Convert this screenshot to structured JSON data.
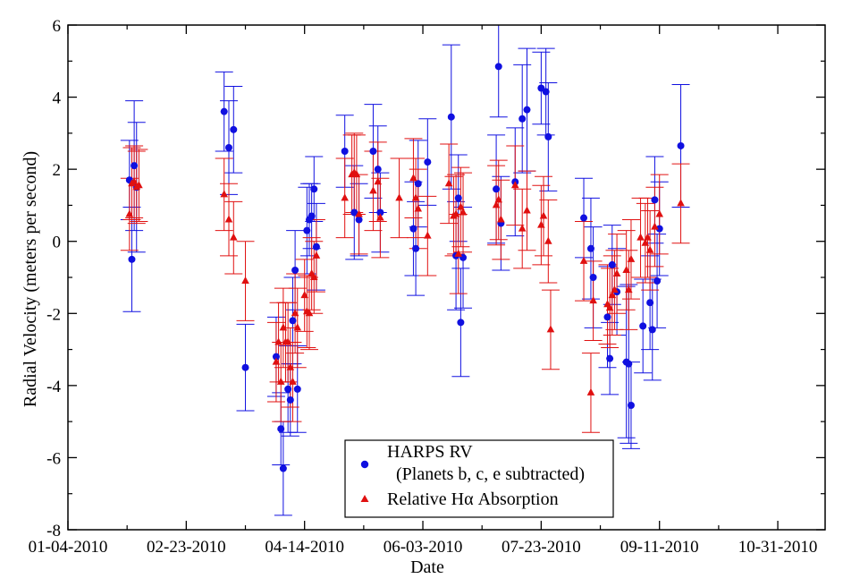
{
  "chart_data": {
    "type": "scatter",
    "title": "",
    "xlabel": "Date",
    "ylabel": "Radial Velocity (meters per second)",
    "x_tick_labels": [
      "01-04-2010",
      "02-23-2010",
      "04-14-2010",
      "06-03-2010",
      "07-23-2010",
      "09-11-2010",
      "10-31-2010"
    ],
    "x_tick_dates": [
      "2010-01-04",
      "2010-02-23",
      "2010-04-14",
      "2010-06-03",
      "2010-07-23",
      "2010-09-11",
      "2010-10-31"
    ],
    "xlim": [
      "2010-01-04",
      "2010-11-20"
    ],
    "y_ticks": [
      -8,
      -6,
      -4,
      -2,
      0,
      2,
      4,
      6
    ],
    "ylim": [
      -8,
      6
    ],
    "grid": false,
    "legend_position": "bottom-center",
    "legend": [
      {
        "label_lines": [
          "HARPS RV",
          "(Planets b, c, e subtracted)"
        ],
        "marker": "circle",
        "color": "#1010e0"
      },
      {
        "label_lines": [
          "Relative Hα Absorption"
        ],
        "marker": "triangle",
        "color": "#e01010"
      }
    ],
    "series": [
      {
        "name": "HARPS RV (Planets b, c, e subtracted)",
        "marker": "circle",
        "color": "#1010e0",
        "points": [
          {
            "x": "2010-01-30",
            "y": 1.7,
            "err": 1.1
          },
          {
            "x": "2010-01-31",
            "y": -0.5,
            "err": 1.45
          },
          {
            "x": "2010-02-01",
            "y": 2.1,
            "err": 1.8
          },
          {
            "x": "2010-02-02",
            "y": 1.5,
            "err": 1.8
          },
          {
            "x": "2010-03-11",
            "y": 3.6,
            "err": 1.1
          },
          {
            "x": "2010-03-13",
            "y": 2.6,
            "err": 1.3
          },
          {
            "x": "2010-03-15",
            "y": 3.1,
            "err": 1.2
          },
          {
            "x": "2010-03-20",
            "y": -3.5,
            "err": 1.2
          },
          {
            "x": "2010-04-02",
            "y": -3.2,
            "err": 1.1
          },
          {
            "x": "2010-04-04",
            "y": -5.2,
            "err": 1.0
          },
          {
            "x": "2010-04-05",
            "y": -6.3,
            "err": 1.3
          },
          {
            "x": "2010-04-07",
            "y": -4.1,
            "err": 1.2
          },
          {
            "x": "2010-04-08",
            "y": -4.4,
            "err": 1.0
          },
          {
            "x": "2010-04-09",
            "y": -2.2,
            "err": 1.2
          },
          {
            "x": "2010-04-10",
            "y": -0.8,
            "err": 1.1
          },
          {
            "x": "2010-04-11",
            "y": -4.1,
            "err": 1.2
          },
          {
            "x": "2010-04-15",
            "y": 0.3,
            "err": 1.2
          },
          {
            "x": "2010-04-16",
            "y": 0.6,
            "err": 1.0
          },
          {
            "x": "2010-04-17",
            "y": 0.7,
            "err": 0.9
          },
          {
            "x": "2010-04-18",
            "y": 1.45,
            "err": 0.9
          },
          {
            "x": "2010-04-19",
            "y": -0.15,
            "err": 1.2
          },
          {
            "x": "2010-05-01",
            "y": 2.5,
            "err": 1.0
          },
          {
            "x": "2010-05-05",
            "y": 0.8,
            "err": 1.3
          },
          {
            "x": "2010-05-07",
            "y": 0.6,
            "err": 1.0
          },
          {
            "x": "2010-05-13",
            "y": 2.5,
            "err": 1.3
          },
          {
            "x": "2010-05-15",
            "y": 2.0,
            "err": 1.2
          },
          {
            "x": "2010-05-16",
            "y": 0.8,
            "err": 1.1
          },
          {
            "x": "2010-05-30",
            "y": 0.35,
            "err": 1.3
          },
          {
            "x": "2010-05-31",
            "y": -0.2,
            "err": 1.3
          },
          {
            "x": "2010-06-01",
            "y": 1.6,
            "err": 1.2
          },
          {
            "x": "2010-06-05",
            "y": 2.2,
            "err": 1.2
          },
          {
            "x": "2010-06-15",
            "y": 3.45,
            "err": 2.0
          },
          {
            "x": "2010-06-17",
            "y": -0.4,
            "err": 1.5
          },
          {
            "x": "2010-06-18",
            "y": 1.2,
            "err": 1.2
          },
          {
            "x": "2010-06-19",
            "y": -2.25,
            "err": 1.5
          },
          {
            "x": "2010-06-20",
            "y": -0.45,
            "err": 1.4
          },
          {
            "x": "2010-07-04",
            "y": 1.45,
            "err": 1.5
          },
          {
            "x": "2010-07-05",
            "y": 4.85,
            "err": 1.4
          },
          {
            "x": "2010-07-06",
            "y": 0.5,
            "err": 1.3
          },
          {
            "x": "2010-07-12",
            "y": 1.65,
            "err": 1.5
          },
          {
            "x": "2010-07-15",
            "y": 3.4,
            "err": 1.5
          },
          {
            "x": "2010-07-17",
            "y": 3.65,
            "err": 1.7
          },
          {
            "x": "2010-07-23",
            "y": 4.25,
            "err": 1.0
          },
          {
            "x": "2010-07-25",
            "y": 4.15,
            "err": 1.2
          },
          {
            "x": "2010-07-26",
            "y": 2.9,
            "err": 1.5
          },
          {
            "x": "2010-08-10",
            "y": 0.65,
            "err": 1.1
          },
          {
            "x": "2010-08-13",
            "y": -0.2,
            "err": 1.4
          },
          {
            "x": "2010-08-14",
            "y": -1.0,
            "err": 1.4
          },
          {
            "x": "2010-08-20",
            "y": -2.1,
            "err": 1.4
          },
          {
            "x": "2010-08-21",
            "y": -3.25,
            "err": 1.0
          },
          {
            "x": "2010-08-22",
            "y": -0.65,
            "err": 1.1
          },
          {
            "x": "2010-08-24",
            "y": -1.4,
            "err": 1.2
          },
          {
            "x": "2010-08-28",
            "y": -3.35,
            "err": 2.1
          },
          {
            "x": "2010-08-29",
            "y": -3.4,
            "err": 2.2
          },
          {
            "x": "2010-08-30",
            "y": -4.55,
            "err": 1.2
          },
          {
            "x": "2010-09-04",
            "y": -2.35,
            "err": 1.3
          },
          {
            "x": "2010-09-07",
            "y": -1.7,
            "err": 1.3
          },
          {
            "x": "2010-09-08",
            "y": -2.45,
            "err": 1.4
          },
          {
            "x": "2010-09-09",
            "y": 1.15,
            "err": 1.2
          },
          {
            "x": "2010-09-10",
            "y": -1.1,
            "err": 1.3
          },
          {
            "x": "2010-09-11",
            "y": 0.35,
            "err": 1.3
          },
          {
            "x": "2010-09-20",
            "y": 2.65,
            "err": 1.7
          }
        ]
      },
      {
        "name": "Relative Hα Absorption",
        "marker": "triangle",
        "color": "#e01010",
        "points": [
          {
            "x": "2010-01-30",
            "y": 0.75,
            "err": 1.0
          },
          {
            "x": "2010-01-31",
            "y": 1.6,
            "err": 1.0
          },
          {
            "x": "2010-02-01",
            "y": 1.65,
            "err": 1.0
          },
          {
            "x": "2010-02-02",
            "y": 1.5,
            "err": 1.0
          },
          {
            "x": "2010-02-03",
            "y": 1.55,
            "err": 1.0
          },
          {
            "x": "2010-03-11",
            "y": 1.3,
            "err": 1.0
          },
          {
            "x": "2010-03-13",
            "y": 0.6,
            "err": 1.0
          },
          {
            "x": "2010-03-15",
            "y": 0.1,
            "err": 1.0
          },
          {
            "x": "2010-03-20",
            "y": -1.1,
            "err": 1.1
          },
          {
            "x": "2010-04-02",
            "y": -3.35,
            "err": 1.1
          },
          {
            "x": "2010-04-03",
            "y": -2.8,
            "err": 1.1
          },
          {
            "x": "2010-04-04",
            "y": -3.9,
            "err": 1.1
          },
          {
            "x": "2010-04-05",
            "y": -2.4,
            "err": 1.1
          },
          {
            "x": "2010-04-06",
            "y": -2.8,
            "err": 1.1
          },
          {
            "x": "2010-04-07",
            "y": -2.8,
            "err": 1.1
          },
          {
            "x": "2010-04-08",
            "y": -3.5,
            "err": 1.1
          },
          {
            "x": "2010-04-09",
            "y": -3.9,
            "err": 1.1
          },
          {
            "x": "2010-04-10",
            "y": -2.0,
            "err": 1.1
          },
          {
            "x": "2010-04-11",
            "y": -2.4,
            "err": 1.1
          },
          {
            "x": "2010-04-14",
            "y": -1.5,
            "err": 1.0
          },
          {
            "x": "2010-04-15",
            "y": -1.95,
            "err": 1.0
          },
          {
            "x": "2010-04-16",
            "y": -2.0,
            "err": 1.0
          },
          {
            "x": "2010-04-17",
            "y": -0.9,
            "err": 1.0
          },
          {
            "x": "2010-04-18",
            "y": -1.0,
            "err": 1.0
          },
          {
            "x": "2010-04-19",
            "y": -0.4,
            "err": 1.0
          },
          {
            "x": "2010-05-01",
            "y": 1.2,
            "err": 1.1
          },
          {
            "x": "2010-05-04",
            "y": 1.85,
            "err": 1.1
          },
          {
            "x": "2010-05-05",
            "y": 1.9,
            "err": 1.1
          },
          {
            "x": "2010-05-06",
            "y": 1.85,
            "err": 1.1
          },
          {
            "x": "2010-05-07",
            "y": 0.75,
            "err": 1.1
          },
          {
            "x": "2010-05-13",
            "y": 1.4,
            "err": 1.1
          },
          {
            "x": "2010-05-15",
            "y": 1.65,
            "err": 1.1
          },
          {
            "x": "2010-05-16",
            "y": 0.65,
            "err": 1.1
          },
          {
            "x": "2010-05-24",
            "y": 1.2,
            "err": 1.1
          },
          {
            "x": "2010-05-30",
            "y": 1.75,
            "err": 1.1
          },
          {
            "x": "2010-05-31",
            "y": 1.2,
            "err": 1.1
          },
          {
            "x": "2010-06-01",
            "y": 0.9,
            "err": 1.1
          },
          {
            "x": "2010-06-05",
            "y": 0.15,
            "err": 1.1
          },
          {
            "x": "2010-06-14",
            "y": 1.6,
            "err": 1.1
          },
          {
            "x": "2010-06-16",
            "y": 0.7,
            "err": 1.1
          },
          {
            "x": "2010-06-17",
            "y": 0.75,
            "err": 1.1
          },
          {
            "x": "2010-06-18",
            "y": -0.35,
            "err": 1.1
          },
          {
            "x": "2010-06-19",
            "y": 0.95,
            "err": 1.1
          },
          {
            "x": "2010-06-20",
            "y": 0.8,
            "err": 1.1
          },
          {
            "x": "2010-07-04",
            "y": 1.0,
            "err": 1.1
          },
          {
            "x": "2010-07-05",
            "y": 1.15,
            "err": 1.1
          },
          {
            "x": "2010-07-06",
            "y": 0.6,
            "err": 1.1
          },
          {
            "x": "2010-07-12",
            "y": 1.55,
            "err": 1.1
          },
          {
            "x": "2010-07-15",
            "y": 0.35,
            "err": 1.1
          },
          {
            "x": "2010-07-17",
            "y": 0.85,
            "err": 1.1
          },
          {
            "x": "2010-07-23",
            "y": 0.45,
            "err": 1.1
          },
          {
            "x": "2010-07-24",
            "y": 0.7,
            "err": 1.1
          },
          {
            "x": "2010-07-26",
            "y": 0.0,
            "err": 1.15
          },
          {
            "x": "2010-07-27",
            "y": -2.45,
            "err": 1.1
          },
          {
            "x": "2010-08-10",
            "y": -0.55,
            "err": 1.1
          },
          {
            "x": "2010-08-13",
            "y": -4.2,
            "err": 1.1
          },
          {
            "x": "2010-08-14",
            "y": -1.65,
            "err": 1.1
          },
          {
            "x": "2010-08-20",
            "y": -1.75,
            "err": 1.1
          },
          {
            "x": "2010-08-21",
            "y": -1.85,
            "err": 1.1
          },
          {
            "x": "2010-08-22",
            "y": -1.5,
            "err": 1.1
          },
          {
            "x": "2010-08-23",
            "y": -1.35,
            "err": 1.1
          },
          {
            "x": "2010-08-24",
            "y": -0.9,
            "err": 1.1
          },
          {
            "x": "2010-08-28",
            "y": -0.8,
            "err": 1.1
          },
          {
            "x": "2010-08-29",
            "y": -1.35,
            "err": 1.1
          },
          {
            "x": "2010-08-30",
            "y": -0.5,
            "err": 1.1
          },
          {
            "x": "2010-09-03",
            "y": 0.1,
            "err": 1.1
          },
          {
            "x": "2010-09-05",
            "y": -0.05,
            "err": 1.1
          },
          {
            "x": "2010-09-06",
            "y": 0.1,
            "err": 1.1
          },
          {
            "x": "2010-09-07",
            "y": -0.25,
            "err": 1.1
          },
          {
            "x": "2010-09-09",
            "y": 0.4,
            "err": 1.1
          },
          {
            "x": "2010-09-11",
            "y": 0.75,
            "err": 1.1
          },
          {
            "x": "2010-09-20",
            "y": 1.05,
            "err": 1.1
          }
        ]
      }
    ]
  }
}
